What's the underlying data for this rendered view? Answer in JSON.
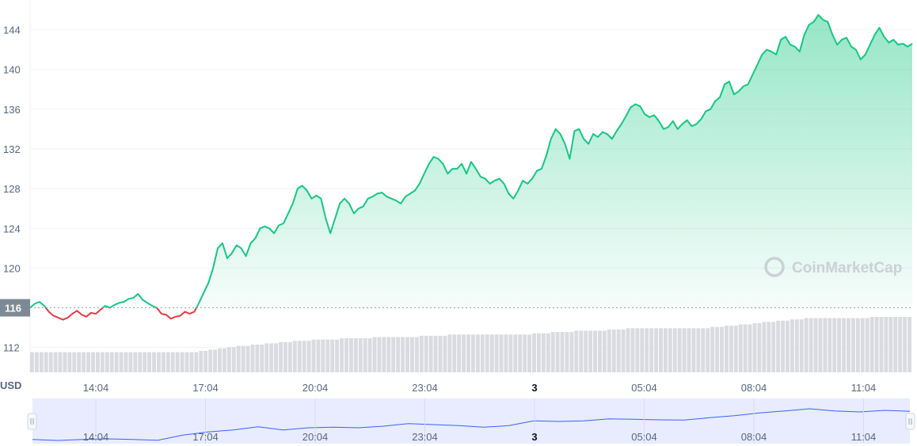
{
  "chart_data": {
    "type": "area",
    "y_unit": "USD",
    "reference_value": 116,
    "reference_label": "116",
    "y_ticks": [
      "112",
      "116",
      "120",
      "124",
      "128",
      "132",
      "136",
      "140",
      "144"
    ],
    "ylim": [
      109.5,
      147
    ],
    "x_ticks": [
      "14:04",
      "17:04",
      "20:04",
      "23:04",
      "3",
      "05:04",
      "08:04",
      "11:04"
    ],
    "grid": true,
    "up_color": "#16c784",
    "down_color": "#ea3943",
    "volume_color": "#d9dbe0",
    "navigator_color": "#3861fb",
    "watermark": "CoinMarketCap",
    "series": [
      {
        "values": [
          116.0,
          116.4,
          116.6,
          116.2,
          115.6,
          115.2,
          115.0,
          114.8,
          115.0,
          115.4,
          115.7,
          115.3,
          115.1,
          115.5,
          115.4,
          115.8,
          116.2,
          116.0,
          116.3,
          116.5,
          116.6,
          116.9,
          117.0,
          117.4,
          116.8,
          116.5,
          116.2,
          116.0,
          115.4,
          115.3,
          114.9,
          115.1,
          115.2,
          115.6,
          115.4,
          115.6,
          116.5,
          117.5,
          118.5,
          120.0,
          122.0,
          122.5,
          121.0,
          121.5,
          122.3,
          122.0,
          121.2,
          122.5,
          123.0,
          124.0,
          124.2,
          124.0,
          123.5,
          124.3,
          124.5,
          125.5,
          126.5,
          128.0,
          128.3,
          127.8,
          127.0,
          127.3,
          127.0,
          125.0,
          123.5,
          125.0,
          126.5,
          127.0,
          126.5,
          125.5,
          126.0,
          126.2,
          127.0,
          127.2,
          127.5,
          127.6,
          127.2,
          127.0,
          126.8,
          126.5,
          127.2,
          127.5,
          127.8,
          128.5,
          129.5,
          130.5,
          131.2,
          131.0,
          130.5,
          129.5,
          130.0,
          130.0,
          130.5,
          129.5,
          130.7,
          130.0,
          129.2,
          129.0,
          128.5,
          128.8,
          129.0,
          128.5,
          127.5,
          127.0,
          127.8,
          128.8,
          128.5,
          129.0,
          129.8,
          130.0,
          131.3,
          133.0,
          134.0,
          133.5,
          132.5,
          131.0,
          133.8,
          134.0,
          133.0,
          132.5,
          133.5,
          133.2,
          133.7,
          133.5,
          133.0,
          133.8,
          134.5,
          135.3,
          136.2,
          136.5,
          136.3,
          135.5,
          135.2,
          135.4,
          134.8,
          134.0,
          134.2,
          134.8,
          134.0,
          134.5,
          134.9,
          134.3,
          134.5,
          135.0,
          135.8,
          136.0,
          136.8,
          137.2,
          138.5,
          138.8,
          137.5,
          137.8,
          138.3,
          138.5,
          139.5,
          140.5,
          141.5,
          142.0,
          141.8,
          141.5,
          143.0,
          143.3,
          142.5,
          142.3,
          141.8,
          143.5,
          144.5,
          144.8,
          145.5,
          145.0,
          144.8,
          143.5,
          142.5,
          143.0,
          143.2,
          142.3,
          142.0,
          141.0,
          141.5,
          142.5,
          143.5,
          144.2,
          143.3,
          142.7,
          143.0,
          142.5,
          142.6,
          142.3,
          142.6
        ]
      }
    ],
    "volume": [
      1.6,
      1.6,
      1.6,
      1.6,
      1.6,
      1.6,
      1.6,
      1.6,
      1.6,
      1.6,
      1.6,
      1.6,
      1.6,
      1.6,
      1.6,
      1.6,
      1.6,
      1.6,
      1.6,
      1.6,
      1.6,
      1.6,
      1.6,
      1.6,
      1.6,
      1.6,
      1.6,
      1.6,
      1.6,
      1.6,
      1.6,
      1.6,
      1.6,
      1.6,
      1.6,
      1.6,
      1.7,
      1.7,
      1.8,
      1.8,
      1.9,
      1.9,
      2.0,
      2.0,
      2.1,
      2.1,
      2.1,
      2.2,
      2.2,
      2.2,
      2.3,
      2.3,
      2.3,
      2.4,
      2.4,
      2.4,
      2.5,
      2.5,
      2.5,
      2.5,
      2.6,
      2.6,
      2.6,
      2.6,
      2.6,
      2.6,
      2.7,
      2.7,
      2.7,
      2.7,
      2.7,
      2.7,
      2.7,
      2.8,
      2.8,
      2.8,
      2.8,
      2.8,
      2.8,
      2.8,
      2.8,
      2.8,
      2.8,
      2.9,
      2.9,
      2.9,
      2.9,
      2.9,
      2.9,
      3.0,
      3.0,
      3.0,
      3.0,
      3.0,
      3.0,
      3.0,
      3.0,
      3.0,
      3.0,
      3.0,
      3.0,
      3.0,
      3.0,
      3.0,
      3.0,
      3.0,
      3.0,
      3.1,
      3.1,
      3.1,
      3.1,
      3.2,
      3.2,
      3.2,
      3.2,
      3.2,
      3.3,
      3.3,
      3.3,
      3.3,
      3.3,
      3.3,
      3.3,
      3.4,
      3.4,
      3.4,
      3.4,
      3.5,
      3.5,
      3.5,
      3.5,
      3.5,
      3.5,
      3.5,
      3.5,
      3.5,
      3.5,
      3.5,
      3.5,
      3.5,
      3.5,
      3.5,
      3.5,
      3.5,
      3.5,
      3.6,
      3.6,
      3.6,
      3.7,
      3.7,
      3.7,
      3.8,
      3.8,
      3.8,
      3.9,
      3.9,
      4.0,
      4.0,
      4.0,
      4.1,
      4.1,
      4.1,
      4.2,
      4.2,
      4.2,
      4.3,
      4.3,
      4.3,
      4.3,
      4.3,
      4.3,
      4.3,
      4.3,
      4.3,
      4.3,
      4.3,
      4.3,
      4.3,
      4.3,
      4.4,
      4.4,
      4.4,
      4.4,
      4.4,
      4.4,
      4.4,
      4.4,
      4.4
    ],
    "navigator": [
      116.0,
      115.0,
      116.0,
      116.5,
      116.0,
      115.2,
      120.0,
      123.0,
      125.0,
      128.0,
      125.0,
      127.0,
      127.5,
      127.0,
      128.5,
      131.0,
      130.0,
      129.0,
      127.5,
      129.0,
      133.5,
      133.0,
      133.5,
      135.5,
      135.0,
      134.5,
      134.3,
      136.5,
      138.5,
      141.0,
      143.0,
      145.0,
      143.0,
      142.0,
      143.5,
      142.6
    ]
  }
}
